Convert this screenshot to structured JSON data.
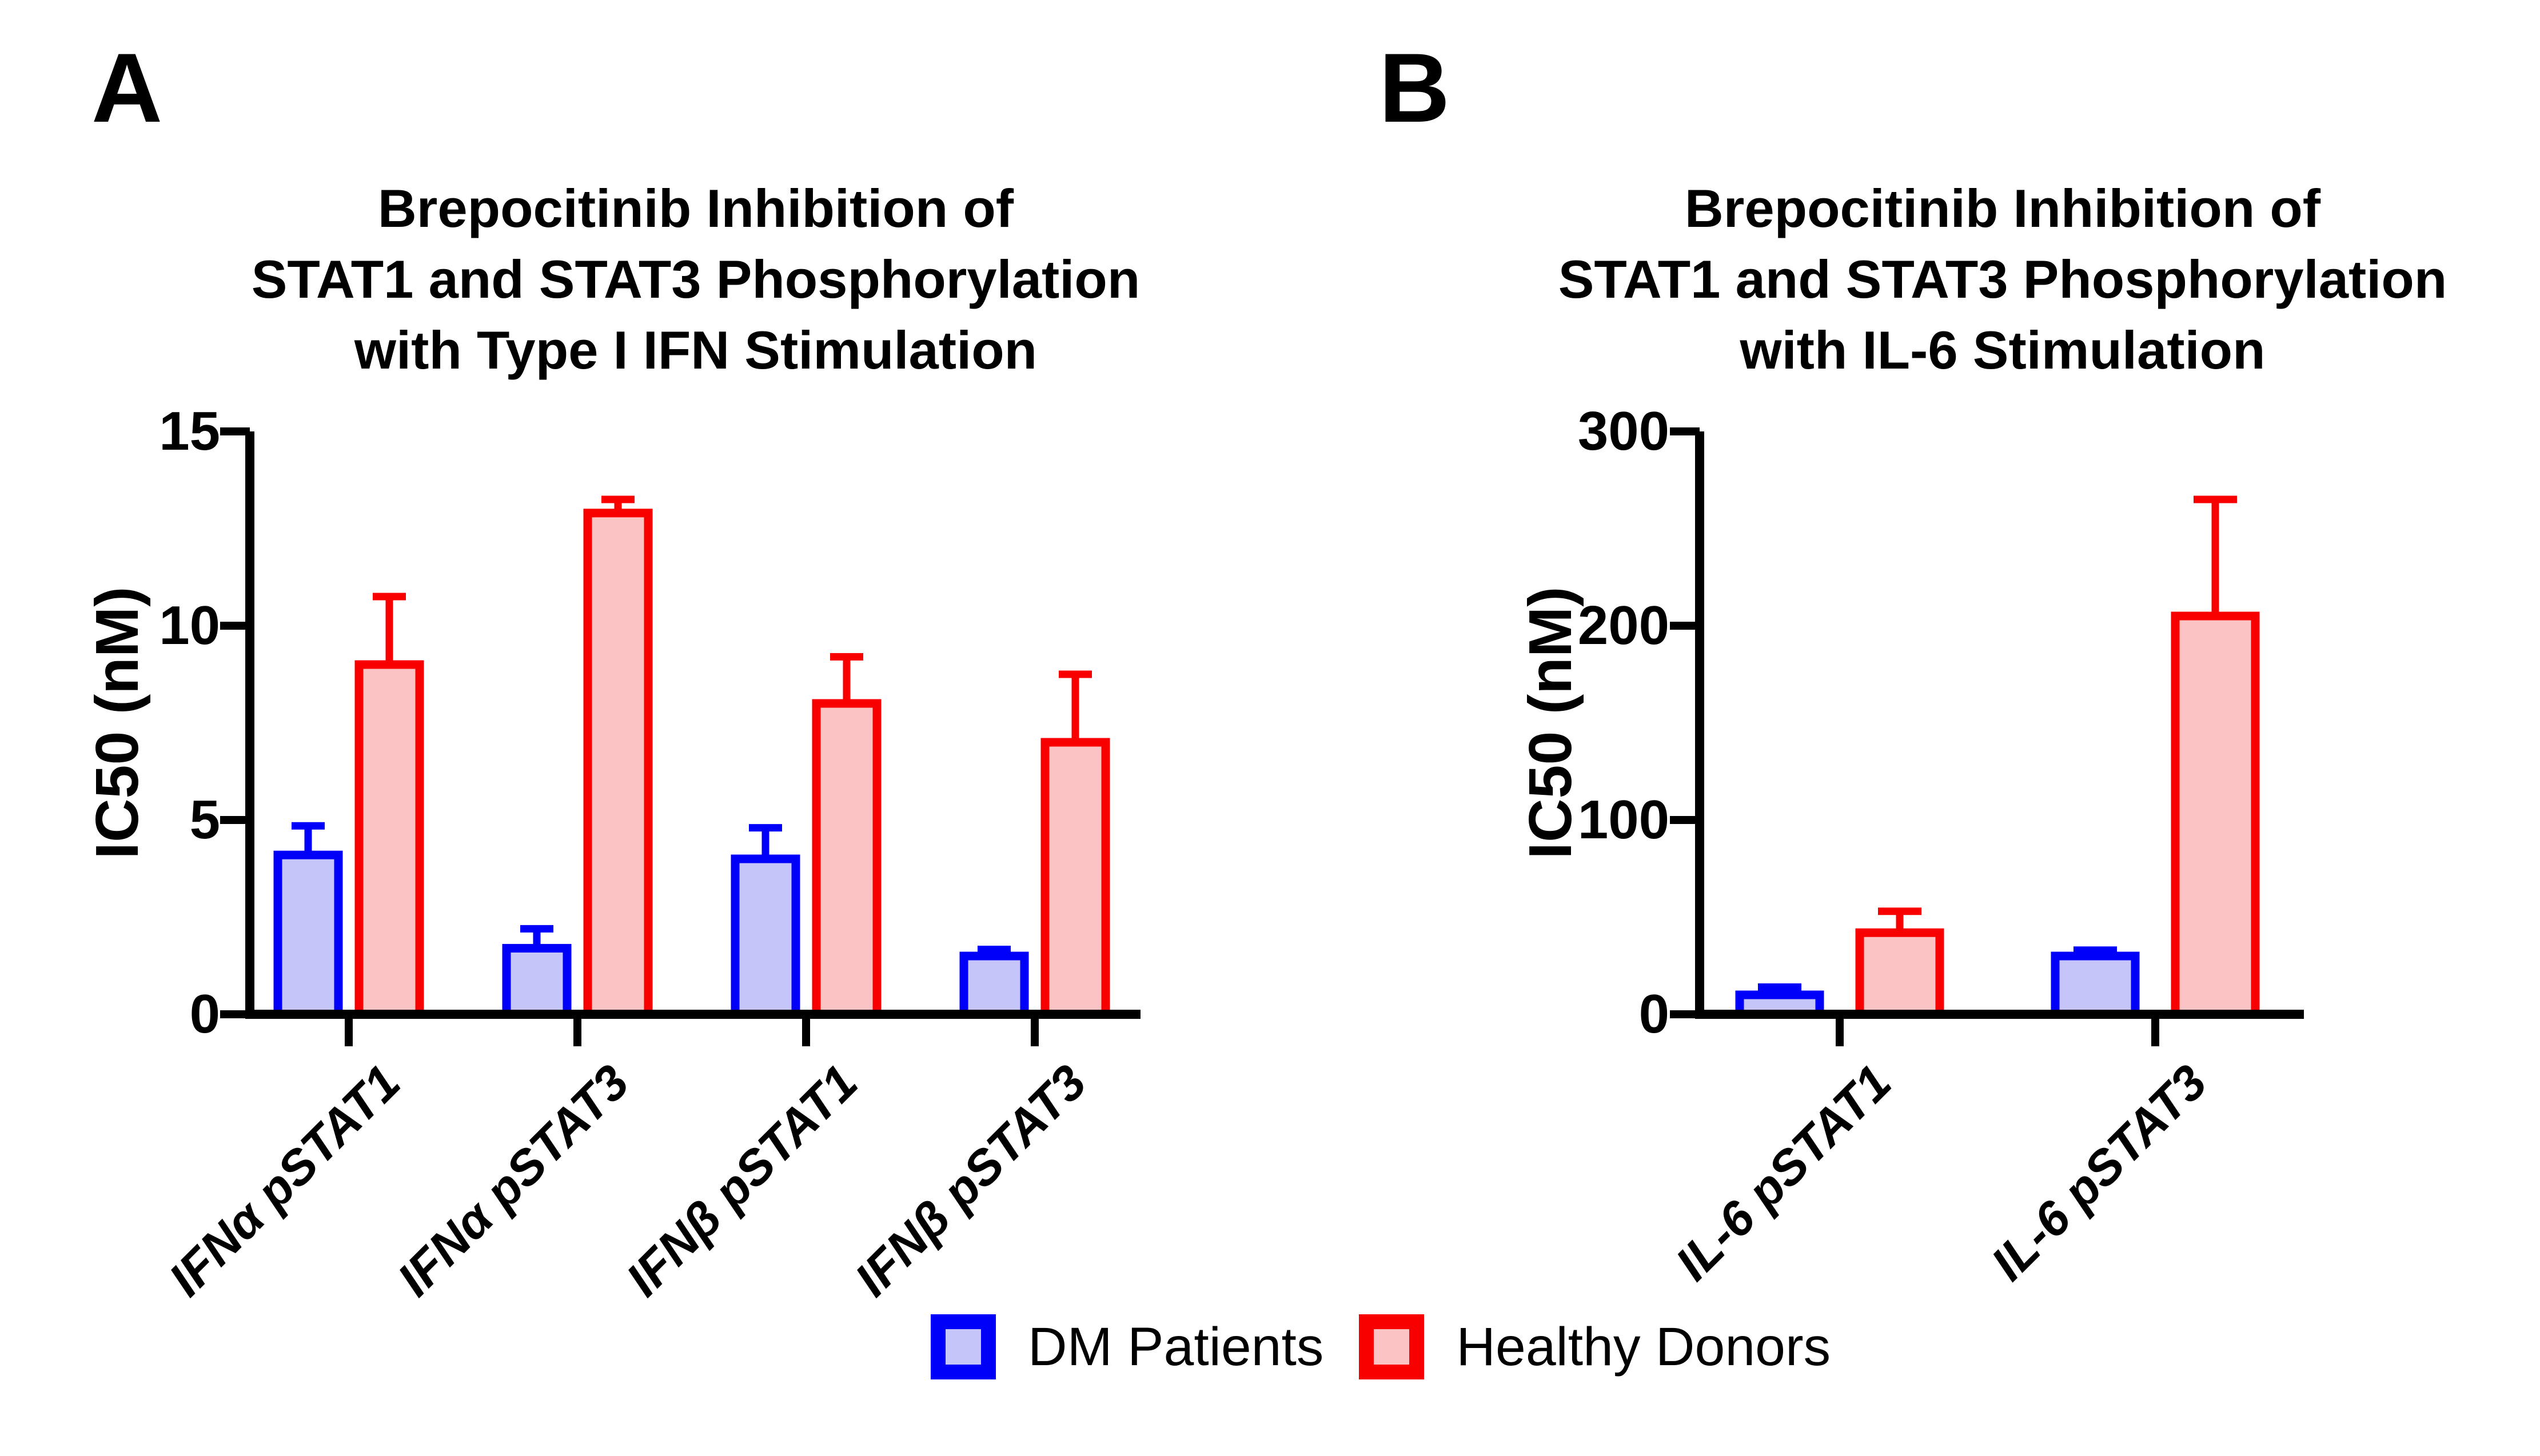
{
  "panel_letters": {
    "a": "A",
    "b": "B"
  },
  "colors": {
    "axis": "#000000",
    "dm_border": "#0000FA",
    "dm_fill": "#C5C5FA",
    "healthy_border": "#F80000",
    "healthy_fill": "#FBC3C3"
  },
  "legend": {
    "items": [
      {
        "label": "DM Patients",
        "border": "#0000FA",
        "fill": "#C5C5FA"
      },
      {
        "label": "Healthy Donors",
        "border": "#F80000",
        "fill": "#FBC3C3"
      }
    ]
  },
  "chart_data": [
    {
      "type": "bar",
      "panel": "A",
      "title": "Brepocitinib Inhibition of STAT1 and STAT3 Phosphorylation with Type I IFN Stimulation",
      "title_lines": [
        "Brepocitinib Inhibition of",
        "STAT1 and STAT3 Phosphorylation",
        "with Type I IFN Stimulation"
      ],
      "xlabel": "",
      "ylabel": "IC50 (nM)",
      "ylim": [
        0,
        15
      ],
      "yticks": [
        0,
        5,
        10,
        15
      ],
      "grid": false,
      "error_bars": "upper only",
      "legend_position": "bottom",
      "categories": [
        "IFNα pSTAT1",
        "IFNα pSTAT3",
        "IFNβ pSTAT1",
        "IFNβ pSTAT3"
      ],
      "series": [
        {
          "name": "DM Patients",
          "values": [
            4.1,
            1.7,
            4.0,
            1.5
          ],
          "errors": [
            0.75,
            0.5,
            0.8,
            0.17
          ]
        },
        {
          "name": "Healthy Donors",
          "values": [
            9.0,
            12.9,
            8.0,
            7.0
          ],
          "errors": [
            1.75,
            0.35,
            1.2,
            1.75
          ]
        }
      ]
    },
    {
      "type": "bar",
      "panel": "B",
      "title": "Brepocitinib Inhibition of STAT1 and STAT3 Phosphorylation with IL-6 Stimulation",
      "title_lines": [
        "Brepocitinib Inhibition of",
        "STAT1 and STAT3 Phosphorylation",
        "with IL-6 Stimulation"
      ],
      "xlabel": "",
      "ylabel": "IC50 (nM)",
      "ylim": [
        0,
        300
      ],
      "yticks": [
        0,
        100,
        200,
        300
      ],
      "grid": false,
      "error_bars": "upper only",
      "legend_position": "bottom",
      "categories": [
        "IL-6 pSTAT1",
        "IL-6 pSTAT3"
      ],
      "series": [
        {
          "name": "DM Patients",
          "values": [
            10,
            30
          ],
          "errors": [
            4,
            3
          ]
        },
        {
          "name": "Healthy Donors",
          "values": [
            42,
            205
          ],
          "errors": [
            11,
            60
          ]
        }
      ]
    }
  ]
}
